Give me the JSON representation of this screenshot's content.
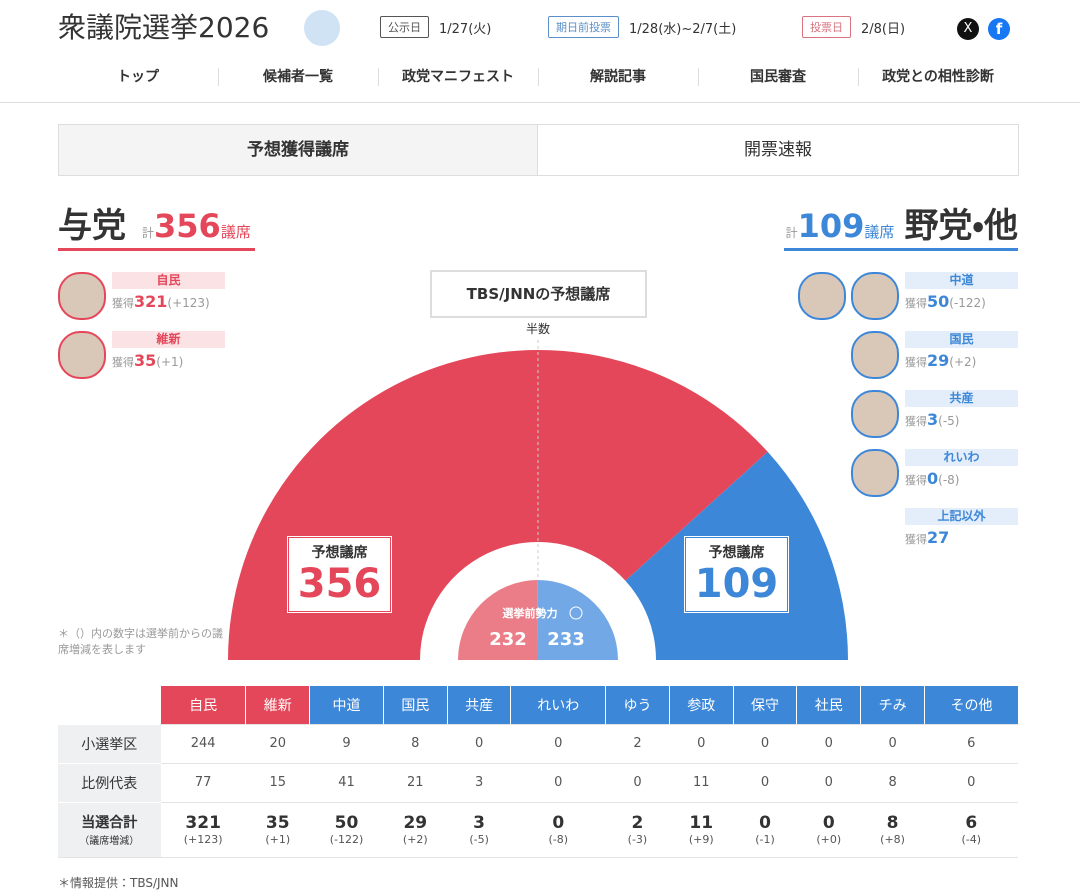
{
  "header": {
    "title": "衆議院選挙2026",
    "schedule": [
      {
        "label": "公示日",
        "date": "1/27(火)"
      },
      {
        "label": "期日前投票",
        "date": "1/28(水)~2/7(土)"
      },
      {
        "label": "投票日",
        "date": "2/8(日)"
      }
    ]
  },
  "nav": [
    "トップ",
    "候補者一覧",
    "政党マニフェスト",
    "解説記事",
    "国民審査",
    "政党との相性診断"
  ],
  "tabs": [
    "予想獲得議席",
    "開票速報"
  ],
  "summary": {
    "ruling": {
      "name": "与党",
      "total_prefix": "計",
      "seats": 356,
      "unit": "議席",
      "color": "#e5475a",
      "parties": [
        {
          "name": "自民",
          "label": "獲得",
          "seats": 321,
          "change": "(+123)"
        },
        {
          "name": "維新",
          "label": "獲得",
          "seats": 35,
          "change": "(+1)"
        }
      ]
    },
    "opposition": {
      "name": "野党・他",
      "total_prefix": "計",
      "seats": 109,
      "unit": "議席",
      "color": "#3d87d8",
      "parties": [
        {
          "name": "中道",
          "label": "獲得",
          "seats": 50,
          "change": "(-122)"
        },
        {
          "name": "国民",
          "label": "獲得",
          "seats": 29,
          "change": "(+2)"
        },
        {
          "name": "共産",
          "label": "獲得",
          "seats": 3,
          "change": "(-5)"
        },
        {
          "name": "れいわ",
          "label": "獲得",
          "seats": 0,
          "change": "(-8)"
        },
        {
          "name": "上記以外",
          "label": "獲得",
          "seats": 27
        }
      ]
    }
  },
  "seat_chart": {
    "title": "TBS/JNNの予想議席",
    "majority_label": "半数",
    "box_label": "予想議席",
    "pre_election_label": "選挙前勢力",
    "pre_election": [
      232,
      233
    ],
    "note": "＊（）内の数字は選挙前からの議席増減を表します"
  },
  "table": {
    "columns": [
      {
        "name": "自民",
        "color": "#e5475a"
      },
      {
        "name": "維新",
        "color": "#e5475a"
      },
      {
        "name": "中道",
        "color": "#3d87d8"
      },
      {
        "name": "国民",
        "color": "#3d87d8"
      },
      {
        "name": "共産",
        "color": "#3d87d8"
      },
      {
        "name": "れいわ",
        "color": "#3d87d8"
      },
      {
        "name": "ゆう",
        "color": "#3d87d8"
      },
      {
        "name": "参政",
        "color": "#3d87d8"
      },
      {
        "name": "保守",
        "color": "#3d87d8"
      },
      {
        "name": "社民",
        "color": "#3d87d8"
      },
      {
        "name": "チみ",
        "color": "#3d87d8"
      },
      {
        "name": "その他",
        "color": "#3d87d8"
      }
    ],
    "rows": [
      {
        "label": "小選挙区",
        "values": [
          244,
          20,
          9,
          8,
          0,
          0,
          2,
          0,
          0,
          0,
          0,
          6
        ]
      },
      {
        "label": "比例代表",
        "values": [
          77,
          15,
          41,
          21,
          3,
          0,
          0,
          11,
          0,
          0,
          8,
          0
        ]
      }
    ],
    "total": {
      "label": "当選合計",
      "sublabel": "（議席増減）",
      "values": [
        321,
        35,
        50,
        29,
        3,
        0,
        2,
        11,
        0,
        0,
        8,
        6
      ],
      "changes": [
        "(+123)",
        "(+1)",
        "(-122)",
        "(+2)",
        "(-5)",
        "(-8)",
        "(-3)",
        "(+9)",
        "(-1)",
        "(+0)",
        "(+8)",
        "(-4)"
      ]
    }
  },
  "footer": "＊情報提供：TBS/JNN"
}
